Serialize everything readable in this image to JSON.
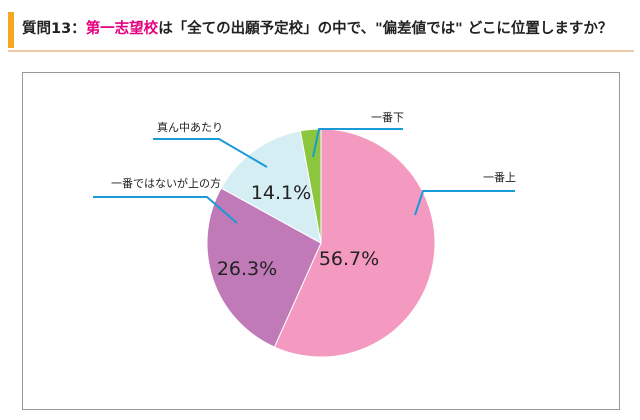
{
  "header": {
    "prefix": "質問13：",
    "highlight": "第一志望校",
    "suffix": "は「全ての出願予定校」の中で、\"偏差値では\" どこに位置しますか？",
    "accent_color": "#f5a623",
    "highlight_color": "#e5007f"
  },
  "chart_data": {
    "type": "pie",
    "start_angle_deg": 0,
    "direction": "clockwise",
    "slices": [
      {
        "label": "一番上",
        "value": 56.7,
        "value_label": "56.7%",
        "color": "#f49ac1"
      },
      {
        "label": "一番ではないが上の方",
        "value": 26.3,
        "value_label": "26.3%",
        "color": "#c07ab8"
      },
      {
        "label": "真ん中あたり",
        "value": 14.1,
        "value_label": "14.1%",
        "color": "#d4eef4"
      },
      {
        "label": "一番下",
        "value": 2.9,
        "value_label": "",
        "color": "#8cc63f"
      }
    ],
    "leader_line_color": "#1a9ad6"
  }
}
